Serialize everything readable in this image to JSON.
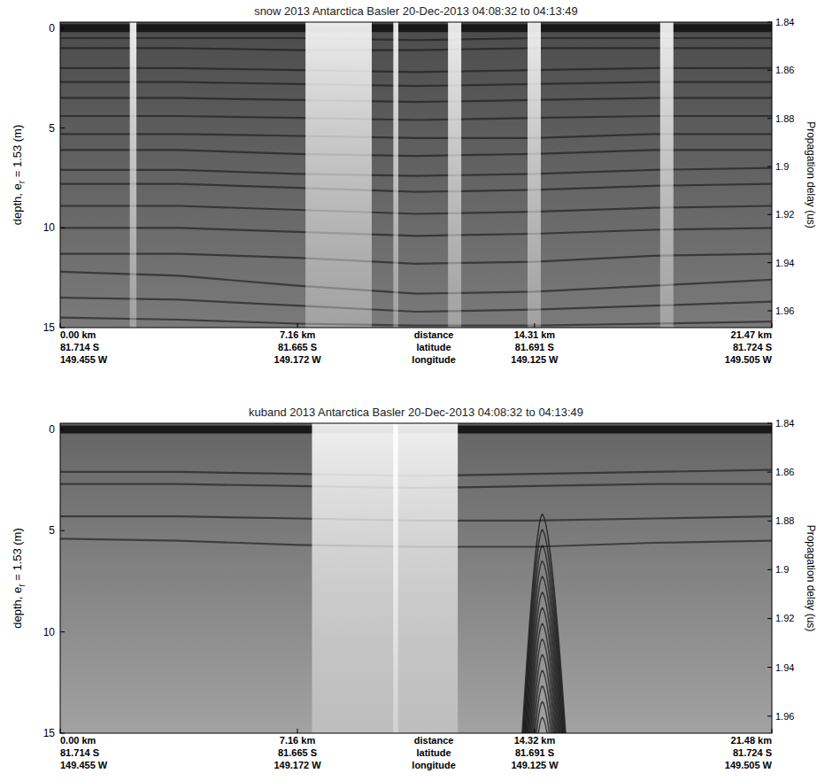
{
  "chart_data": [
    {
      "type": "echogram",
      "title": "snow 2013 Antarctica Basler 20-Dec-2013 04:08:32 to 04:13:49",
      "xlabel": [
        "distance",
        "latitude",
        "longitude"
      ],
      "ylabel": {
        "text": "depth, e",
        "sub": "r",
        "after": " = 1.53 (m)"
      },
      "y2label": "Propagation delay (us)",
      "color": "#7a7a7a",
      "xlim": [
        0,
        21.47
      ],
      "xticks": [
        {
          "value": 0,
          "label": "0.00 km"
        },
        {
          "value": 7.16,
          "label": "7.16 km"
        },
        {
          "value": 14.31,
          "label": "14.31 km"
        },
        {
          "value": 21.47,
          "label": "21.47 km"
        }
      ],
      "latitudes": [
        "81.714 S",
        "81.665 S",
        "81.691 S",
        "81.724 S"
      ],
      "longitudes": [
        "149.455 W",
        "149.172 W",
        "149.125 W",
        "149.505 W"
      ],
      "ylim": [
        -0.3,
        15
      ],
      "yticks": [
        0,
        5,
        10,
        15
      ],
      "y2lim": [
        1.84,
        1.967
      ],
      "y2ticks": [
        1.84,
        1.86,
        1.88,
        1.9,
        1.92,
        1.94,
        1.96
      ],
      "layers": {
        "x": [
          0,
          3.58,
          7.16,
          10.74,
          14.31,
          17.89,
          21.47
        ],
        "depths": [
          [
            0,
            0,
            0,
            0,
            0,
            0,
            0
          ],
          [
            0.5,
            0.5,
            0.5,
            0.6,
            0.5,
            0.5,
            0.5
          ],
          [
            1.0,
            1.0,
            1.1,
            1.1,
            1.0,
            1.0,
            1.0
          ],
          [
            2.0,
            2.0,
            2.1,
            2.2,
            2.1,
            2.0,
            2.0
          ],
          [
            2.7,
            2.7,
            2.8,
            2.9,
            2.8,
            2.7,
            2.7
          ],
          [
            3.5,
            3.5,
            3.6,
            3.7,
            3.6,
            3.5,
            3.5
          ],
          [
            4.4,
            4.4,
            4.5,
            4.6,
            4.5,
            4.4,
            4.4
          ],
          [
            5.3,
            5.3,
            5.4,
            5.5,
            5.5,
            5.3,
            5.3
          ],
          [
            6.1,
            6.1,
            6.3,
            6.4,
            6.3,
            6.1,
            6.1
          ],
          [
            7.1,
            7.1,
            7.3,
            7.4,
            7.3,
            7.1,
            7.0
          ],
          [
            7.8,
            7.8,
            8.0,
            8.2,
            8.1,
            7.9,
            7.8
          ],
          [
            8.9,
            8.9,
            9.1,
            9.3,
            9.2,
            9.0,
            8.9
          ],
          [
            10.0,
            10.0,
            10.2,
            10.4,
            10.3,
            10.1,
            10.0
          ],
          [
            11.3,
            11.3,
            11.5,
            11.8,
            11.7,
            11.4,
            11.3
          ],
          [
            12.2,
            12.4,
            12.9,
            13.3,
            13.2,
            12.9,
            12.6
          ],
          [
            13.5,
            13.6,
            13.9,
            14.2,
            14.1,
            13.9,
            13.7
          ],
          [
            14.5,
            14.6,
            14.8,
            14.9,
            14.9,
            14.8,
            14.7
          ]
        ]
      },
      "bright_columns": [
        {
          "x0": 2.1,
          "x1": 2.3
        },
        {
          "x0": 7.4,
          "x1": 9.4
        },
        {
          "x0": 10.05,
          "x1": 10.2
        },
        {
          "x0": 11.7,
          "x1": 12.1
        },
        {
          "x0": 14.1,
          "x1": 14.5
        },
        {
          "x0": 18.1,
          "x1": 18.5
        }
      ]
    },
    {
      "type": "echogram",
      "title": "kuband 2013 Antarctica Basler 20-Dec-2013 04:08:32 to 04:13:49",
      "xlabel": [
        "distance",
        "latitude",
        "longitude"
      ],
      "ylabel": {
        "text": "depth, e",
        "sub": "r",
        "after": " = 1.53 (m)"
      },
      "y2label": "Propagation delay (us)",
      "color": "#a2a2a2",
      "xlim": [
        0,
        21.48
      ],
      "xticks": [
        {
          "value": 0,
          "label": "0.00 km"
        },
        {
          "value": 7.16,
          "label": "7.16 km"
        },
        {
          "value": 14.32,
          "label": "14.32 km"
        },
        {
          "value": 21.48,
          "label": "21.48 km"
        }
      ],
      "latitudes": [
        "81.714 S",
        "81.665 S",
        "81.691 S",
        "81.724 S"
      ],
      "longitudes": [
        "149.455 W",
        "149.172 W",
        "149.125 W",
        "149.505 W"
      ],
      "ylim": [
        -0.3,
        15
      ],
      "yticks": [
        0,
        5,
        10,
        15
      ],
      "y2lim": [
        1.84,
        1.967
      ],
      "y2ticks": [
        1.84,
        1.86,
        1.88,
        1.9,
        1.92,
        1.94,
        1.96
      ],
      "layers": {
        "x": [
          0,
          3.58,
          7.16,
          10.74,
          14.32,
          17.9,
          21.48
        ],
        "depths": [
          [
            0,
            0,
            0,
            0,
            0,
            0,
            0
          ],
          [
            2.1,
            2.1,
            2.2,
            2.3,
            2.2,
            2.1,
            2.0
          ],
          [
            2.7,
            2.7,
            2.8,
            2.9,
            2.8,
            2.7,
            2.7
          ],
          [
            4.3,
            4.3,
            4.4,
            4.5,
            4.5,
            4.4,
            4.3
          ],
          [
            5.4,
            5.5,
            5.7,
            5.8,
            5.8,
            5.6,
            5.5
          ]
        ]
      },
      "bright_columns": [
        {
          "x0": 7.6,
          "x1": 12.0
        },
        {
          "x0": 10.05,
          "x1": 10.2
        }
      ],
      "hyperbola": {
        "apex_x": 14.55,
        "apex_depth": 4.2,
        "edge_x": [
          13.95,
          15.25
        ]
      }
    }
  ]
}
